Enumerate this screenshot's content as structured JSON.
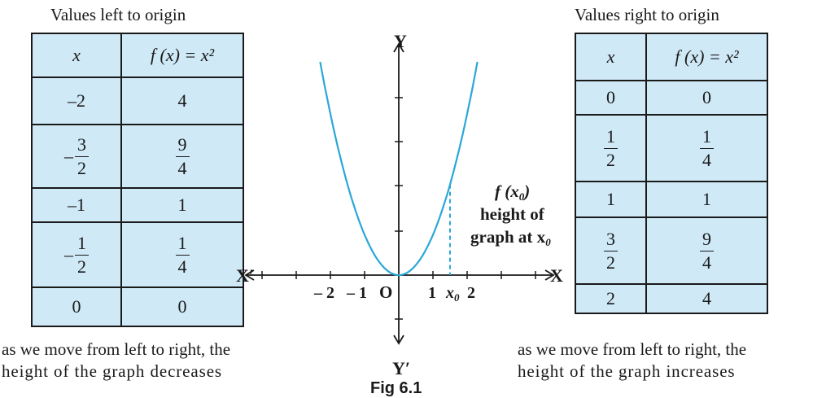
{
  "left_panel": {
    "caption": "Values left to origin",
    "header": {
      "x": "x",
      "fx": "f (x) = x²"
    },
    "rows": [
      {
        "x": "–2",
        "fx": "4"
      },
      {
        "x_num": "3",
        "x_den": "2",
        "fx_num": "9",
        "fx_den": "4"
      },
      {
        "x": "–1",
        "fx": "1"
      },
      {
        "x_num": "1",
        "x_den": "2",
        "fx_num": "1",
        "fx_den": "4"
      },
      {
        "x": "0",
        "fx": "0"
      }
    ],
    "note_line1": "as we move from left to right, the",
    "note_line2": "height of the graph decreases"
  },
  "right_panel": {
    "caption": "Values right to origin",
    "header": {
      "x": "x",
      "fx": "f (x) = x²"
    },
    "rows": [
      {
        "x": "0",
        "fx": "0"
      },
      {
        "x_num": "1",
        "x_den": "2",
        "fx_num": "1",
        "fx_den": "4"
      },
      {
        "x": "1",
        "fx": "1"
      },
      {
        "x_num": "3",
        "x_den": "2",
        "fx_num": "9",
        "fx_den": "4"
      },
      {
        "x": "2",
        "fx": "4"
      }
    ],
    "note_line1": "as we move from left to right, the",
    "note_line2": "height of the graph increases"
  },
  "graph": {
    "axis_labels": {
      "x_pos": "X",
      "x_neg": "X′",
      "y_pos": "Y",
      "y_neg": "Y′",
      "origin": "O"
    },
    "tick_labels": {
      "minus2": "– 2",
      "minus1": "– 1",
      "plus1": "1",
      "plus2": "2",
      "x0": "x",
      "x0_sub": "0"
    },
    "annotation": {
      "line1": "f (x",
      "line1_sub": "0",
      "line1_end": ")",
      "line2": "height of",
      "line3": "graph at x",
      "line3_sub": "0"
    },
    "curve_color": "#2aa7d8",
    "function": "x^2",
    "x0_value": 1.5
  },
  "figure_label": "Fig 6.1"
}
